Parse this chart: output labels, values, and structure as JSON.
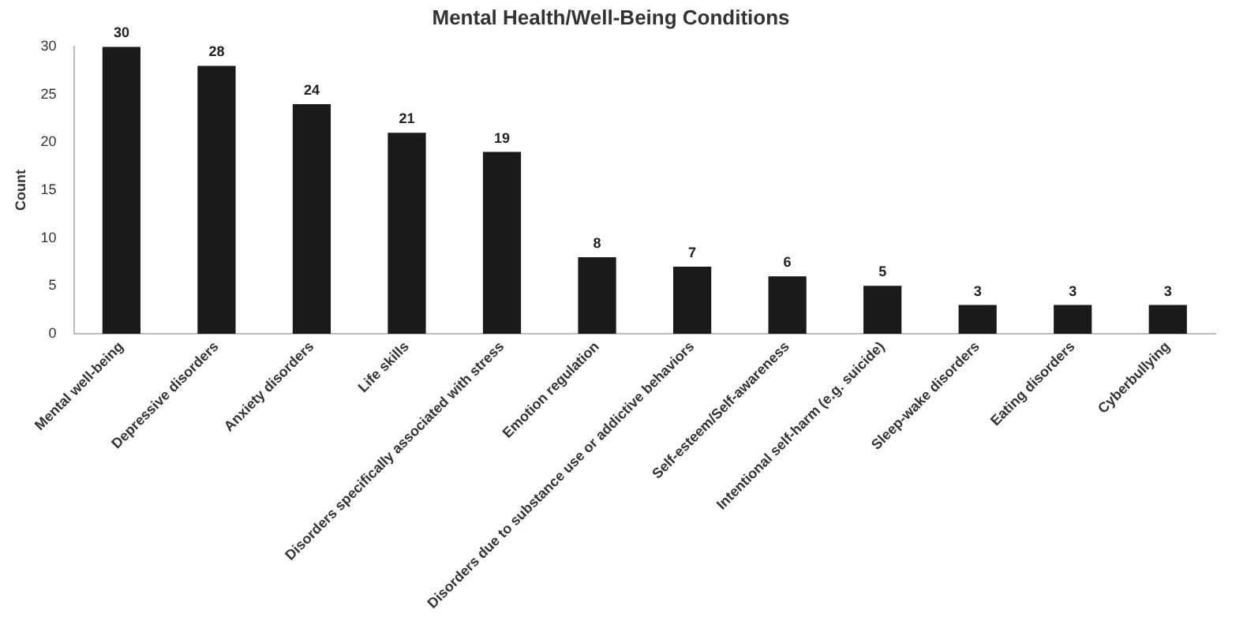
{
  "chart_data": {
    "type": "bar",
    "title": "Mental Health/Well-Being Conditions",
    "ylabel": "Count",
    "categories": [
      "Mental well-being",
      "Depressive disorders",
      "Anxiety disorders",
      "Life skills",
      "Disorders specifically associated with stress",
      "Emotion regulation",
      "Disorders due to substance use or addictive behaviors",
      "Self-esteem/Self-awareness",
      "Intentional self-harm (e.g. suicide)",
      "Sleep-wake disorders",
      "Eating disorders",
      "Cyberbullying"
    ],
    "values": [
      30,
      28,
      24,
      21,
      19,
      8,
      7,
      6,
      5,
      3,
      3,
      3
    ],
    "color": "#1a1a1a",
    "ylim": [
      0,
      30
    ],
    "yticks": [
      0,
      5,
      10,
      15,
      20,
      25,
      30
    ],
    "grid": false,
    "data_labels": true
  }
}
